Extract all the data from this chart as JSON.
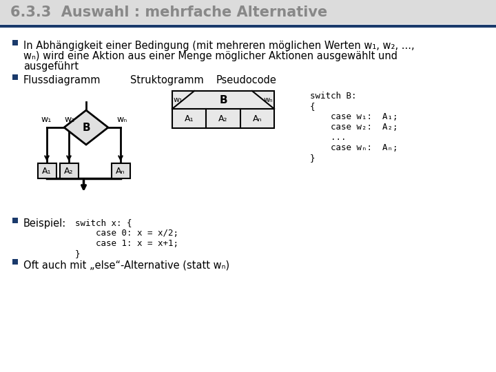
{
  "title": "6.3.3  Auswahl : mehrfache Alternative",
  "title_color": "#888888",
  "title_bg": "#e0e0e0",
  "bg_color": "#ffffff",
  "separator_color": "#1a3a6b",
  "bullet_color": "#1a3a6b",
  "text_color": "#000000",
  "body_font_size": 10.5,
  "mono_font_size": 9,
  "line1": "In Abhängigkeit einer Bedingung (mit mehreren möglichen Werten w₁, w₂, ...,",
  "line2": "wₙ) wird eine Aktion aus einer Menge möglicher Aktionen ausgewählt und",
  "line3": "ausgeführt",
  "label_fluss": "Flussdiagramm",
  "label_strukt": "Struktogramm",
  "label_pseudo": "Pseudocode",
  "pseudocode": [
    "switch B:",
    "{",
    "    case w₁:  A₁;",
    "    case w₂:  A₂;",
    "    ...",
    "    case wₙ:  Aₙ;",
    "}"
  ],
  "beispiel_label": "Beispiel:",
  "beispiel_code": [
    "switch x: {",
    "    case 0: x = x/2;",
    "    case 1: x = x+1;",
    "}"
  ],
  "last_line": "Oft auch mit „else“-Alternative (statt wₙ)"
}
